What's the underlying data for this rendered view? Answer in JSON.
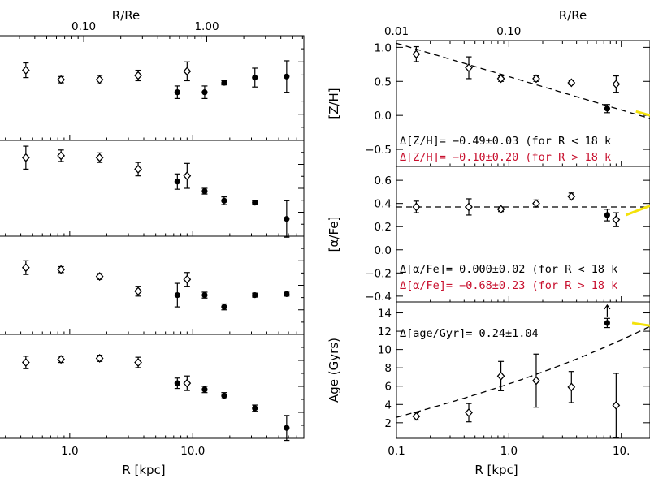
{
  "colors": {
    "ink": "#000000",
    "accent_red": "#c8102e",
    "highlight_yellow": "#f4e20b"
  },
  "left": {
    "x_axis": {
      "label": "R [kpc]",
      "ticks": [
        {
          "v": 1,
          "t": "1.0"
        },
        {
          "v": 10,
          "t": "10.0"
        }
      ],
      "top_label": "R/Re",
      "top_ticks": [
        {
          "v": 0.1,
          "t": "0.10"
        },
        {
          "v": 1.0,
          "t": "1.00"
        }
      ]
    }
  },
  "right": {
    "x_axis": {
      "label": "R [kpc]",
      "ticks": [
        {
          "v": 0.1,
          "t": "0.1"
        },
        {
          "v": 1,
          "t": "1.0"
        },
        {
          "v": 10,
          "t": "10."
        }
      ],
      "top_label": "R/Re",
      "top_ticks": [
        {
          "v": 0.01,
          "t": "0.01"
        },
        {
          "v": 0.1,
          "t": "0.10"
        }
      ]
    },
    "panels": [
      {
        "ylabel": "[Z/H]",
        "annotations": [
          {
            "text": "Δ[Z/H]= −0.49±0.03 (for R < 18 k",
            "color": "#000000"
          },
          {
            "text": "Δ[Z/H]= −0.10±0.20 (for R > 18 k",
            "color": "#c8102e"
          }
        ]
      },
      {
        "ylabel": "[α/Fe]",
        "annotations": [
          {
            "text": "Δ[α/Fe]= 0.000±0.02 (for R < 18 k",
            "color": "#000000"
          },
          {
            "text": "Δ[α/Fe]= −0.68±0.23 (for R > 18 k",
            "color": "#c8102e"
          }
        ]
      },
      {
        "ylabel": "Age (Gyrs)",
        "annotations": [
          {
            "text": "Δ[age/Gyr]= 0.24±1.04",
            "color": "#000000"
          }
        ]
      }
    ]
  },
  "chart_data": [
    {
      "type": "scatter",
      "title": "",
      "xlabel": "R [kpc]",
      "x2label": "R/Re",
      "xscale": "log",
      "xlim": [
        0.2,
        80
      ],
      "panels": [
        {
          "ylabel": "",
          "ylim": [
            0,
            1
          ],
          "points": [
            {
              "x": 0.44,
              "y": 0.67,
              "err": 0.07,
              "m": "open"
            },
            {
              "x": 0.85,
              "y": 0.58,
              "err": 0.03,
              "m": "open"
            },
            {
              "x": 1.75,
              "y": 0.58,
              "err": 0.04,
              "m": "open"
            },
            {
              "x": 3.6,
              "y": 0.62,
              "err": 0.05,
              "m": "open"
            },
            {
              "x": 7.5,
              "y": 0.46,
              "err": 0.06,
              "m": "filled"
            },
            {
              "x": 9.0,
              "y": 0.66,
              "err": 0.09,
              "m": "open"
            },
            {
              "x": 12.5,
              "y": 0.46,
              "err": 0.06,
              "m": "filled"
            },
            {
              "x": 18.0,
              "y": 0.55,
              "err": 0.02,
              "m": "filled"
            },
            {
              "x": 32.0,
              "y": 0.6,
              "err": 0.09,
              "m": "filled"
            },
            {
              "x": 58.0,
              "y": 0.61,
              "err": 0.15,
              "m": "filled"
            }
          ]
        },
        {
          "ylabel": "",
          "ylim": [
            0,
            1
          ],
          "points": [
            {
              "x": 0.44,
              "y": 0.82,
              "err": 0.12,
              "m": "open"
            },
            {
              "x": 0.85,
              "y": 0.84,
              "err": 0.06,
              "m": "open"
            },
            {
              "x": 1.75,
              "y": 0.82,
              "err": 0.05,
              "m": "open"
            },
            {
              "x": 3.6,
              "y": 0.7,
              "err": 0.07,
              "m": "open"
            },
            {
              "x": 7.5,
              "y": 0.57,
              "err": 0.08,
              "m": "filled"
            },
            {
              "x": 9.0,
              "y": 0.63,
              "err": 0.13,
              "m": "open"
            },
            {
              "x": 12.5,
              "y": 0.47,
              "err": 0.03,
              "m": "filled"
            },
            {
              "x": 18.0,
              "y": 0.37,
              "err": 0.04,
              "m": "filled"
            },
            {
              "x": 32.0,
              "y": 0.35,
              "err": 0.02,
              "m": "filled"
            },
            {
              "x": 58.0,
              "y": 0.18,
              "err": 0.19,
              "m": "filled"
            }
          ]
        },
        {
          "ylabel": "",
          "ylim": [
            0,
            1
          ],
          "points": [
            {
              "x": 0.44,
              "y": 0.68,
              "err": 0.07,
              "m": "open"
            },
            {
              "x": 0.85,
              "y": 0.66,
              "err": 0.03,
              "m": "open"
            },
            {
              "x": 1.75,
              "y": 0.59,
              "err": 0.03,
              "m": "open"
            },
            {
              "x": 3.6,
              "y": 0.44,
              "err": 0.05,
              "m": "open"
            },
            {
              "x": 7.5,
              "y": 0.4,
              "err": 0.12,
              "m": "filled"
            },
            {
              "x": 9.0,
              "y": 0.56,
              "err": 0.07,
              "m": "open"
            },
            {
              "x": 12.5,
              "y": 0.4,
              "err": 0.03,
              "m": "filled"
            },
            {
              "x": 18.0,
              "y": 0.28,
              "err": 0.03,
              "m": "filled"
            },
            {
              "x": 32.0,
              "y": 0.4,
              "err": 0.02,
              "m": "filled"
            },
            {
              "x": 58.0,
              "y": 0.41,
              "err": 0.02,
              "m": "filled"
            }
          ]
        },
        {
          "ylabel": "",
          "ylim": [
            0,
            1
          ],
          "points": [
            {
              "x": 0.44,
              "y": 0.73,
              "err": 0.06,
              "m": "open"
            },
            {
              "x": 0.85,
              "y": 0.76,
              "err": 0.03,
              "m": "open"
            },
            {
              "x": 1.75,
              "y": 0.77,
              "err": 0.03,
              "m": "open"
            },
            {
              "x": 3.6,
              "y": 0.73,
              "err": 0.05,
              "m": "open"
            },
            {
              "x": 7.5,
              "y": 0.53,
              "err": 0.05,
              "m": "filled"
            },
            {
              "x": 9.0,
              "y": 0.53,
              "err": 0.07,
              "m": "open"
            },
            {
              "x": 12.5,
              "y": 0.47,
              "err": 0.03,
              "m": "filled"
            },
            {
              "x": 18.0,
              "y": 0.41,
              "err": 0.03,
              "m": "filled"
            },
            {
              "x": 32.0,
              "y": 0.29,
              "err": 0.03,
              "m": "filled"
            },
            {
              "x": 58.0,
              "y": 0.1,
              "err": 0.12,
              "m": "filled"
            }
          ]
        }
      ]
    },
    {
      "type": "scatter",
      "title": "",
      "xlabel": "R [kpc]",
      "x2label": "R/Re",
      "xscale": "log",
      "xlim": [
        0.1,
        18
      ],
      "panels": [
        {
          "ylabel": "[Z/H]",
          "ylim": [
            -0.75,
            1.1
          ],
          "yticks": [
            {
              "v": 1.0,
              "t": "1.0"
            },
            {
              "v": 0.5,
              "t": "0.5"
            },
            {
              "v": 0.0,
              "t": "0.0"
            },
            {
              "v": -0.5,
              "t": "−0.5"
            }
          ],
          "fit": {
            "kind": "loglinear",
            "a": 0.57,
            "b": -0.49,
            "xmin": 0.1,
            "xmax": 18
          },
          "highlight": {
            "x1": 13.5,
            "y1": 0.06,
            "x2": 18,
            "y2": 0.0
          },
          "points": [
            {
              "x": 0.15,
              "y": 0.9,
              "err": 0.11,
              "m": "open"
            },
            {
              "x": 0.44,
              "y": 0.7,
              "err": 0.16,
              "m": "open"
            },
            {
              "x": 0.85,
              "y": 0.54,
              "err": 0.04,
              "m": "open"
            },
            {
              "x": 1.75,
              "y": 0.54,
              "err": 0.04,
              "m": "open"
            },
            {
              "x": 3.6,
              "y": 0.48,
              "err": 0.03,
              "m": "open"
            },
            {
              "x": 7.5,
              "y": 0.1,
              "err": 0.06,
              "m": "filled"
            },
            {
              "x": 9.0,
              "y": 0.46,
              "err": 0.12,
              "m": "open"
            }
          ]
        },
        {
          "ylabel": "[α/Fe]",
          "ylim": [
            -0.45,
            0.72
          ],
          "yticks": [
            {
              "v": 0.6,
              "t": "0.6"
            },
            {
              "v": 0.4,
              "t": "0.4"
            },
            {
              "v": 0.2,
              "t": "0.2"
            },
            {
              "v": 0.0,
              "t": "0.0"
            },
            {
              "v": -0.2,
              "t": "−0.2"
            },
            {
              "v": -0.4,
              "t": "−0.4"
            }
          ],
          "fit": {
            "kind": "loglinear",
            "a": 0.37,
            "b": 0.0,
            "xmin": 0.1,
            "xmax": 18
          },
          "highlight": {
            "x1": 11.0,
            "y1": 0.3,
            "x2": 18,
            "y2": 0.38
          },
          "points": [
            {
              "x": 0.15,
              "y": 0.37,
              "err": 0.05,
              "m": "open"
            },
            {
              "x": 0.44,
              "y": 0.37,
              "err": 0.07,
              "m": "open"
            },
            {
              "x": 0.85,
              "y": 0.35,
              "err": 0.02,
              "m": "open"
            },
            {
              "x": 1.75,
              "y": 0.4,
              "err": 0.03,
              "m": "open"
            },
            {
              "x": 3.6,
              "y": 0.46,
              "err": 0.03,
              "m": "open"
            },
            {
              "x": 7.5,
              "y": 0.3,
              "err": 0.05,
              "m": "filled"
            },
            {
              "x": 9.0,
              "y": 0.26,
              "err": 0.06,
              "m": "open"
            }
          ]
        },
        {
          "ylabel": "Age (Gyrs)",
          "ylim": [
            0.3,
            15.2
          ],
          "yticks": [
            {
              "v": 14,
              "t": "14"
            },
            {
              "v": 12,
              "t": "12"
            },
            {
              "v": 10,
              "t": "10"
            },
            {
              "v": 8,
              "t": "8"
            },
            {
              "v": 6,
              "t": "6"
            },
            {
              "v": 4,
              "t": "4"
            },
            {
              "v": 2,
              "t": "2"
            }
          ],
          "fit": {
            "kind": "loglinear",
            "a": 3.3,
            "b": 0.24,
            "xmin": 0.1,
            "xmax": 18,
            "curve": "exp"
          },
          "highlight": {
            "x1": 12.5,
            "y1": 12.9,
            "x2": 18,
            "y2": 12.6
          },
          "points": [
            {
              "x": 0.15,
              "y": 2.7,
              "err": 0.4,
              "m": "open"
            },
            {
              "x": 0.44,
              "y": 3.1,
              "err": 1.0,
              "m": "open"
            },
            {
              "x": 0.85,
              "y": 7.1,
              "err": 1.6,
              "m": "open"
            },
            {
              "x": 1.75,
              "y": 6.6,
              "err": 2.9,
              "m": "open"
            },
            {
              "x": 3.6,
              "y": 5.9,
              "err": 1.7,
              "m": "open"
            },
            {
              "x": 7.5,
              "y": 12.9,
              "err": 0.5,
              "m": "filled",
              "arrow": true
            },
            {
              "x": 9.0,
              "y": 3.9,
              "err": 3.5,
              "m": "open"
            }
          ]
        }
      ]
    }
  ]
}
